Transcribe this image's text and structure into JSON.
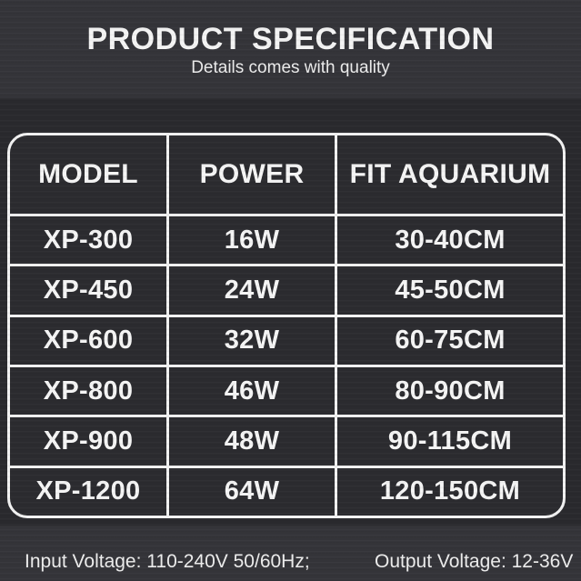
{
  "header": {
    "title": "PRODUCT SPECIFICATION",
    "subtitle": "Details comes with quality"
  },
  "table": {
    "columns": [
      "MODEL",
      "POWER",
      "FIT AQUARIUM"
    ],
    "rows": [
      [
        "XP-300",
        "16W",
        "30-40CM"
      ],
      [
        "XP-450",
        "24W",
        "45-50CM"
      ],
      [
        "XP-600",
        "32W",
        "60-75CM"
      ],
      [
        "XP-800",
        "46W",
        "80-90CM"
      ],
      [
        "XP-900",
        "48W",
        "90-115CM"
      ],
      [
        "XP-1200",
        "64W",
        "120-150CM"
      ]
    ]
  },
  "footer": {
    "input_voltage": "Input Voltage: 110-240V 50/60Hz;",
    "output_voltage": "Output Voltage: 12-36V"
  },
  "colors": {
    "strip_background": "#343439",
    "main_background": "#29292d",
    "cell_background": "#2b2b2f",
    "grid_border": "#f2f2f2",
    "text": "#f5f5f5"
  }
}
